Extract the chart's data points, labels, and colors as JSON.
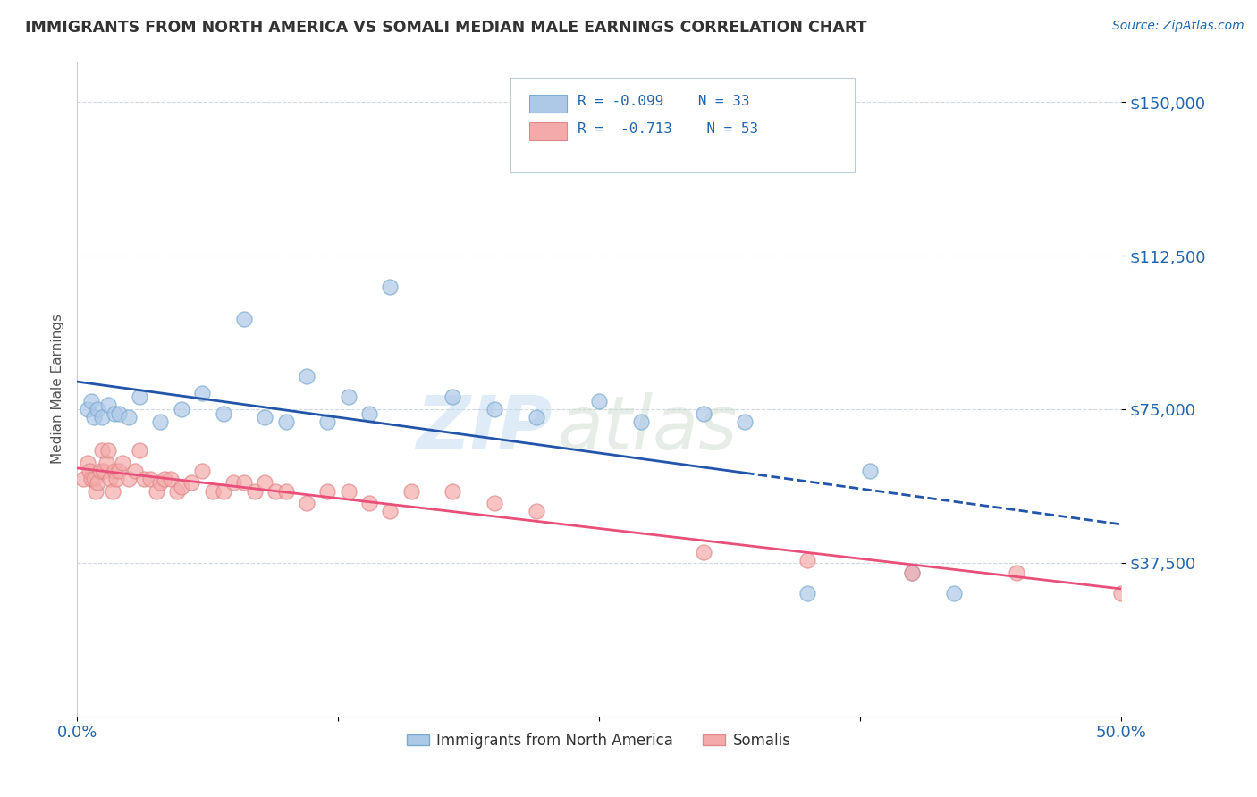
{
  "title": "IMMIGRANTS FROM NORTH AMERICA VS SOMALI MEDIAN MALE EARNINGS CORRELATION CHART",
  "source": "Source: ZipAtlas.com",
  "ylabel": "Median Male Earnings",
  "yticks": [
    37500,
    75000,
    112500,
    150000
  ],
  "ytick_labels": [
    "$37,500",
    "$75,000",
    "$112,500",
    "$150,000"
  ],
  "xlim": [
    0.0,
    0.5
  ],
  "ylim": [
    0,
    160000
  ],
  "legend_label1": "Immigrants from North America",
  "legend_label2": "Somalis",
  "r1": "-0.099",
  "n1": "33",
  "r2": "-0.713",
  "n2": "53",
  "blue_color": "#aec8e8",
  "pink_color": "#f4aaaa",
  "blue_edge_color": "#7aaace",
  "pink_edge_color": "#e08888",
  "blue_line_color": "#2255aa",
  "pink_line_color": "#e8507a",
  "blue_scatter": [
    [
      0.005,
      75000
    ],
    [
      0.007,
      77000
    ],
    [
      0.008,
      73000
    ],
    [
      0.01,
      75000
    ],
    [
      0.012,
      73000
    ],
    [
      0.015,
      76000
    ],
    [
      0.018,
      74000
    ],
    [
      0.02,
      74000
    ],
    [
      0.025,
      73000
    ],
    [
      0.03,
      78000
    ],
    [
      0.04,
      72000
    ],
    [
      0.05,
      75000
    ],
    [
      0.06,
      79000
    ],
    [
      0.07,
      74000
    ],
    [
      0.08,
      97000
    ],
    [
      0.09,
      73000
    ],
    [
      0.1,
      72000
    ],
    [
      0.11,
      83000
    ],
    [
      0.12,
      72000
    ],
    [
      0.13,
      78000
    ],
    [
      0.14,
      74000
    ],
    [
      0.15,
      105000
    ],
    [
      0.18,
      78000
    ],
    [
      0.2,
      75000
    ],
    [
      0.22,
      73000
    ],
    [
      0.25,
      77000
    ],
    [
      0.27,
      72000
    ],
    [
      0.3,
      74000
    ],
    [
      0.32,
      72000
    ],
    [
      0.35,
      30000
    ],
    [
      0.38,
      60000
    ],
    [
      0.4,
      35000
    ],
    [
      0.42,
      30000
    ]
  ],
  "pink_scatter": [
    [
      0.003,
      58000
    ],
    [
      0.005,
      62000
    ],
    [
      0.006,
      60000
    ],
    [
      0.007,
      58000
    ],
    [
      0.008,
      58000
    ],
    [
      0.009,
      55000
    ],
    [
      0.01,
      57000
    ],
    [
      0.011,
      60000
    ],
    [
      0.012,
      65000
    ],
    [
      0.013,
      60000
    ],
    [
      0.014,
      62000
    ],
    [
      0.015,
      65000
    ],
    [
      0.016,
      58000
    ],
    [
      0.017,
      55000
    ],
    [
      0.018,
      60000
    ],
    [
      0.019,
      58000
    ],
    [
      0.02,
      60000
    ],
    [
      0.022,
      62000
    ],
    [
      0.025,
      58000
    ],
    [
      0.028,
      60000
    ],
    [
      0.03,
      65000
    ],
    [
      0.032,
      58000
    ],
    [
      0.035,
      58000
    ],
    [
      0.038,
      55000
    ],
    [
      0.04,
      57000
    ],
    [
      0.042,
      58000
    ],
    [
      0.045,
      58000
    ],
    [
      0.048,
      55000
    ],
    [
      0.05,
      56000
    ],
    [
      0.055,
      57000
    ],
    [
      0.06,
      60000
    ],
    [
      0.065,
      55000
    ],
    [
      0.07,
      55000
    ],
    [
      0.075,
      57000
    ],
    [
      0.08,
      57000
    ],
    [
      0.085,
      55000
    ],
    [
      0.09,
      57000
    ],
    [
      0.095,
      55000
    ],
    [
      0.1,
      55000
    ],
    [
      0.11,
      52000
    ],
    [
      0.12,
      55000
    ],
    [
      0.13,
      55000
    ],
    [
      0.14,
      52000
    ],
    [
      0.15,
      50000
    ],
    [
      0.16,
      55000
    ],
    [
      0.18,
      55000
    ],
    [
      0.2,
      52000
    ],
    [
      0.22,
      50000
    ],
    [
      0.3,
      40000
    ],
    [
      0.35,
      38000
    ],
    [
      0.4,
      35000
    ],
    [
      0.45,
      35000
    ],
    [
      0.5,
      30000
    ]
  ],
  "watermark_zip": "ZIP",
  "watermark_atlas": "atlas",
  "background_color": "#ffffff",
  "grid_color": "#d0d8e0"
}
